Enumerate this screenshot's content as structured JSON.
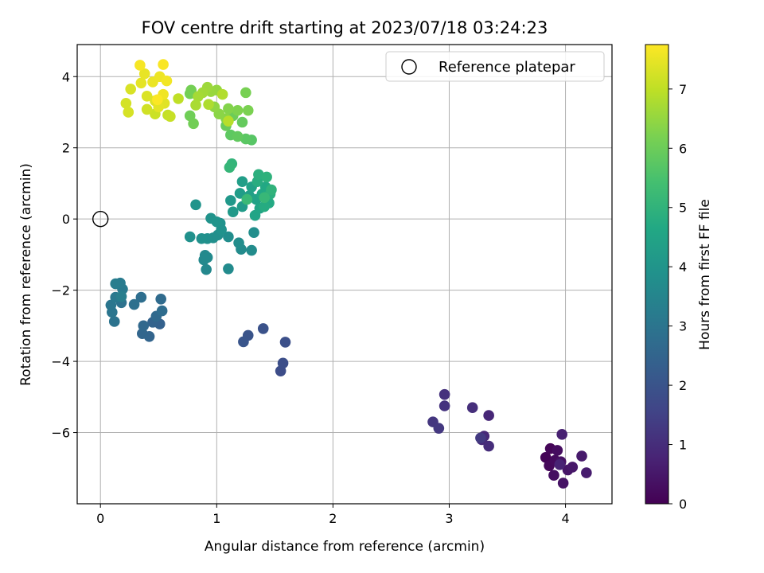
{
  "chart_data": {
    "type": "scatter",
    "title": "FOV centre drift starting at 2023/07/18 03:24:23",
    "xlabel": "Angular distance from reference (arcmin)",
    "ylabel": "Rotation from reference (arcmin)",
    "xlim": [
      -0.2,
      4.4
    ],
    "ylim": [
      -8.0,
      4.9
    ],
    "xticks": [
      0,
      1,
      2,
      3,
      4
    ],
    "xtick_labels": [
      "0",
      "1",
      "2",
      "3",
      "4"
    ],
    "yticks": [
      -6,
      -4,
      -2,
      0,
      2,
      4
    ],
    "ytick_labels": [
      "−6",
      "−4",
      "−2",
      "0",
      "2",
      "4"
    ],
    "grid": true,
    "legend": {
      "position": "top-right",
      "entries": [
        "Reference platepar"
      ]
    },
    "reference": {
      "name": "Reference platepar",
      "x": 0,
      "y": 0
    },
    "colorbar": {
      "label": "Hours from first FF file",
      "range": [
        0,
        7.75
      ],
      "ticks": [
        0,
        1,
        2,
        3,
        4,
        5,
        6,
        7
      ],
      "tick_labels": [
        "0",
        "1",
        "2",
        "3",
        "4",
        "5",
        "6",
        "7"
      ],
      "colormap": "viridis"
    },
    "points": [
      {
        "x": 3.83,
        "y": -6.7,
        "h": 0.05
      },
      {
        "x": 3.87,
        "y": -6.45,
        "h": 0.1
      },
      {
        "x": 3.86,
        "y": -6.93,
        "h": 0.15
      },
      {
        "x": 3.91,
        "y": -6.78,
        "h": 0.2
      },
      {
        "x": 3.93,
        "y": -6.5,
        "h": 0.25
      },
      {
        "x": 3.9,
        "y": -7.2,
        "h": 0.3
      },
      {
        "x": 3.96,
        "y": -6.82,
        "h": 0.35
      },
      {
        "x": 3.98,
        "y": -7.42,
        "h": 0.4
      },
      {
        "x": 4.02,
        "y": -7.05,
        "h": 0.45
      },
      {
        "x": 4.06,
        "y": -6.97,
        "h": 0.5
      },
      {
        "x": 4.14,
        "y": -6.66,
        "h": 0.55
      },
      {
        "x": 4.18,
        "y": -7.13,
        "h": 0.6
      },
      {
        "x": 3.97,
        "y": -6.05,
        "h": 0.7
      },
      {
        "x": 3.95,
        "y": -6.9,
        "h": 0.75
      },
      {
        "x": 3.34,
        "y": -5.52,
        "h": 0.85
      },
      {
        "x": 3.3,
        "y": -6.1,
        "h": 0.9
      },
      {
        "x": 3.28,
        "y": -6.2,
        "h": 0.95
      },
      {
        "x": 3.34,
        "y": -6.38,
        "h": 1.0
      },
      {
        "x": 3.2,
        "y": -5.3,
        "h": 1.05
      },
      {
        "x": 2.96,
        "y": -4.93,
        "h": 1.1
      },
      {
        "x": 2.96,
        "y": -5.25,
        "h": 1.15
      },
      {
        "x": 2.86,
        "y": -5.7,
        "h": 1.2
      },
      {
        "x": 2.91,
        "y": -5.88,
        "h": 1.25
      },
      {
        "x": 3.27,
        "y": -6.15,
        "h": 1.3
      },
      {
        "x": 1.55,
        "y": -4.27,
        "h": 1.8
      },
      {
        "x": 1.57,
        "y": -4.05,
        "h": 1.85
      },
      {
        "x": 1.59,
        "y": -3.46,
        "h": 1.9
      },
      {
        "x": 1.4,
        "y": -3.08,
        "h": 1.95
      },
      {
        "x": 1.27,
        "y": -3.27,
        "h": 2.0
      },
      {
        "x": 1.23,
        "y": -3.45,
        "h": 2.05
      },
      {
        "x": 0.51,
        "y": -2.95,
        "h": 2.4
      },
      {
        "x": 0.45,
        "y": -2.9,
        "h": 2.45
      },
      {
        "x": 0.42,
        "y": -3.3,
        "h": 2.5
      },
      {
        "x": 0.36,
        "y": -3.22,
        "h": 2.55
      },
      {
        "x": 0.37,
        "y": -3.0,
        "h": 2.6
      },
      {
        "x": 0.48,
        "y": -2.73,
        "h": 2.65
      },
      {
        "x": 0.52,
        "y": -2.25,
        "h": 2.7
      },
      {
        "x": 0.53,
        "y": -2.58,
        "h": 2.75
      },
      {
        "x": 0.35,
        "y": -2.2,
        "h": 2.8
      },
      {
        "x": 0.29,
        "y": -2.4,
        "h": 2.85
      },
      {
        "x": 0.18,
        "y": -2.35,
        "h": 2.9
      },
      {
        "x": 0.12,
        "y": -2.88,
        "h": 2.95
      },
      {
        "x": 0.1,
        "y": -2.62,
        "h": 3.0
      },
      {
        "x": 0.09,
        "y": -2.42,
        "h": 3.05
      },
      {
        "x": 0.13,
        "y": -2.2,
        "h": 3.1
      },
      {
        "x": 0.19,
        "y": -1.97,
        "h": 3.15
      },
      {
        "x": 0.17,
        "y": -1.8,
        "h": 3.2
      },
      {
        "x": 0.13,
        "y": -1.82,
        "h": 3.25
      },
      {
        "x": 0.18,
        "y": -2.18,
        "h": 3.3
      },
      {
        "x": 0.91,
        "y": -1.42,
        "h": 3.6
      },
      {
        "x": 0.9,
        "y": -1.02,
        "h": 3.62
      },
      {
        "x": 0.89,
        "y": -1.15,
        "h": 3.64
      },
      {
        "x": 0.92,
        "y": -1.08,
        "h": 3.66
      },
      {
        "x": 1.1,
        "y": -1.4,
        "h": 3.68
      },
      {
        "x": 1.21,
        "y": -0.85,
        "h": 3.7
      },
      {
        "x": 1.3,
        "y": -0.88,
        "h": 3.72
      },
      {
        "x": 1.19,
        "y": -0.67,
        "h": 3.74
      },
      {
        "x": 1.1,
        "y": -0.5,
        "h": 3.76
      },
      {
        "x": 1.32,
        "y": -0.38,
        "h": 3.78
      },
      {
        "x": 1.01,
        "y": -0.45,
        "h": 3.8
      },
      {
        "x": 0.97,
        "y": -0.53,
        "h": 3.82
      },
      {
        "x": 0.92,
        "y": -0.55,
        "h": 3.84
      },
      {
        "x": 0.87,
        "y": -0.55,
        "h": 3.86
      },
      {
        "x": 0.77,
        "y": -0.5,
        "h": 3.88
      },
      {
        "x": 1.04,
        "y": -0.3,
        "h": 3.9
      },
      {
        "x": 1.03,
        "y": -0.12,
        "h": 3.92
      },
      {
        "x": 0.95,
        "y": 0.02,
        "h": 3.94
      },
      {
        "x": 0.82,
        "y": 0.4,
        "h": 3.96
      },
      {
        "x": 1.0,
        "y": -0.08,
        "h": 3.98
      },
      {
        "x": 1.12,
        "y": 0.52,
        "h": 4.1
      },
      {
        "x": 1.14,
        "y": 0.2,
        "h": 4.15
      },
      {
        "x": 1.22,
        "y": 0.35,
        "h": 4.2
      },
      {
        "x": 1.2,
        "y": 0.72,
        "h": 4.25
      },
      {
        "x": 1.22,
        "y": 1.05,
        "h": 4.3
      },
      {
        "x": 1.28,
        "y": 0.65,
        "h": 4.35
      },
      {
        "x": 1.3,
        "y": 0.9,
        "h": 4.4
      },
      {
        "x": 1.34,
        "y": 0.55,
        "h": 4.45
      },
      {
        "x": 1.33,
        "y": 0.1,
        "h": 4.5
      },
      {
        "x": 1.37,
        "y": 0.3,
        "h": 4.55
      },
      {
        "x": 1.39,
        "y": 0.7,
        "h": 4.6
      },
      {
        "x": 1.42,
        "y": 0.9,
        "h": 4.65
      },
      {
        "x": 1.45,
        "y": 0.45,
        "h": 4.7
      },
      {
        "x": 1.41,
        "y": 0.35,
        "h": 4.75
      },
      {
        "x": 1.35,
        "y": 1.05,
        "h": 4.8
      },
      {
        "x": 1.46,
        "y": 0.7,
        "h": 4.85
      },
      {
        "x": 1.36,
        "y": 1.25,
        "h": 4.9
      },
      {
        "x": 1.43,
        "y": 1.18,
        "h": 4.95
      },
      {
        "x": 1.47,
        "y": 0.82,
        "h": 5.0
      },
      {
        "x": 1.13,
        "y": 1.55,
        "h": 5.05
      },
      {
        "x": 1.11,
        "y": 1.45,
        "h": 5.1
      },
      {
        "x": 1.41,
        "y": 0.6,
        "h": 5.15
      },
      {
        "x": 1.26,
        "y": 0.55,
        "h": 5.2
      },
      {
        "x": 1.3,
        "y": 2.22,
        "h": 5.7
      },
      {
        "x": 1.25,
        "y": 2.25,
        "h": 5.75
      },
      {
        "x": 1.12,
        "y": 2.36,
        "h": 5.8
      },
      {
        "x": 1.18,
        "y": 2.32,
        "h": 5.85
      },
      {
        "x": 1.22,
        "y": 2.72,
        "h": 5.9
      },
      {
        "x": 1.08,
        "y": 2.62,
        "h": 5.95
      },
      {
        "x": 1.14,
        "y": 2.9,
        "h": 6.0
      },
      {
        "x": 0.77,
        "y": 2.9,
        "h": 6.05
      },
      {
        "x": 0.8,
        "y": 2.68,
        "h": 6.08
      },
      {
        "x": 0.77,
        "y": 3.52,
        "h": 6.1
      },
      {
        "x": 0.78,
        "y": 3.62,
        "h": 6.12
      },
      {
        "x": 1.25,
        "y": 3.55,
        "h": 6.15
      },
      {
        "x": 1.27,
        "y": 3.05,
        "h": 6.2
      },
      {
        "x": 1.18,
        "y": 3.05,
        "h": 6.25
      },
      {
        "x": 1.1,
        "y": 3.1,
        "h": 6.3
      },
      {
        "x": 1.08,
        "y": 2.82,
        "h": 6.35
      },
      {
        "x": 1.02,
        "y": 2.95,
        "h": 6.4
      },
      {
        "x": 0.98,
        "y": 3.15,
        "h": 6.45
      },
      {
        "x": 1.0,
        "y": 3.62,
        "h": 6.5
      },
      {
        "x": 0.95,
        "y": 3.58,
        "h": 6.55
      },
      {
        "x": 0.92,
        "y": 3.7,
        "h": 6.6
      },
      {
        "x": 0.88,
        "y": 3.55,
        "h": 6.65
      },
      {
        "x": 0.84,
        "y": 3.44,
        "h": 6.7
      },
      {
        "x": 0.82,
        "y": 3.2,
        "h": 6.75
      },
      {
        "x": 0.93,
        "y": 3.22,
        "h": 6.8
      },
      {
        "x": 1.05,
        "y": 3.5,
        "h": 6.85
      },
      {
        "x": 1.1,
        "y": 2.75,
        "h": 6.9
      },
      {
        "x": 0.67,
        "y": 3.38,
        "h": 7.0
      },
      {
        "x": 0.58,
        "y": 2.92,
        "h": 7.05
      },
      {
        "x": 0.6,
        "y": 2.88,
        "h": 7.1
      },
      {
        "x": 0.47,
        "y": 2.95,
        "h": 7.15
      },
      {
        "x": 0.4,
        "y": 3.08,
        "h": 7.2
      },
      {
        "x": 0.22,
        "y": 3.25,
        "h": 7.25
      },
      {
        "x": 0.24,
        "y": 3.0,
        "h": 7.28
      },
      {
        "x": 0.26,
        "y": 3.65,
        "h": 7.3
      },
      {
        "x": 0.4,
        "y": 3.45,
        "h": 7.33
      },
      {
        "x": 0.47,
        "y": 3.32,
        "h": 7.36
      },
      {
        "x": 0.55,
        "y": 3.25,
        "h": 7.4
      },
      {
        "x": 0.5,
        "y": 3.15,
        "h": 7.43
      },
      {
        "x": 0.35,
        "y": 3.82,
        "h": 7.46
      },
      {
        "x": 0.38,
        "y": 4.08,
        "h": 7.5
      },
      {
        "x": 0.45,
        "y": 3.85,
        "h": 7.53
      },
      {
        "x": 0.51,
        "y": 4.0,
        "h": 7.56
      },
      {
        "x": 0.54,
        "y": 3.5,
        "h": 7.59
      },
      {
        "x": 0.57,
        "y": 3.88,
        "h": 7.62
      },
      {
        "x": 0.34,
        "y": 4.32,
        "h": 7.66
      },
      {
        "x": 0.54,
        "y": 4.34,
        "h": 7.7
      },
      {
        "x": 0.49,
        "y": 3.35,
        "h": 7.72
      }
    ]
  }
}
